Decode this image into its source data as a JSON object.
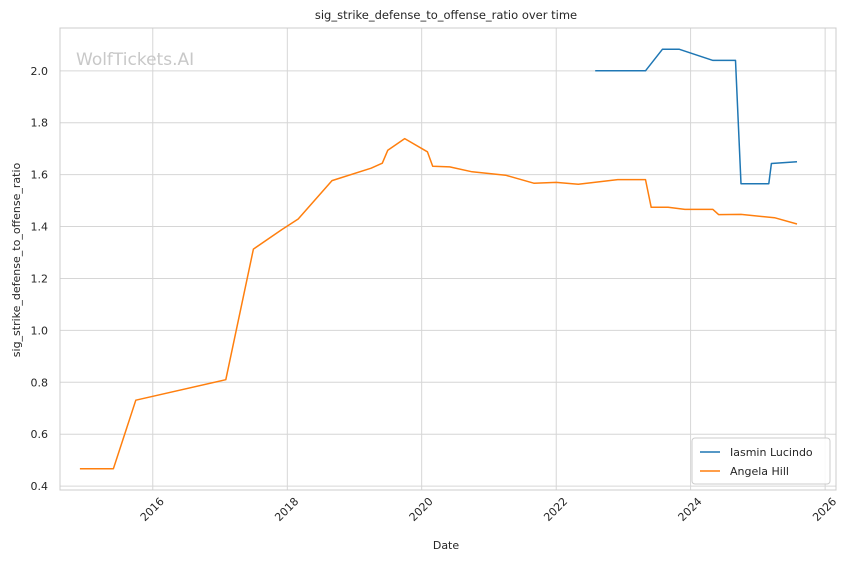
{
  "chart_data": {
    "type": "line",
    "title": "sig_strike_defense_to_offense_ratio over time",
    "xlabel": "Date",
    "ylabel": "sig_strike_defense_to_offense_ratio",
    "watermark": "WolfTickets.AI",
    "x_ticks": [
      "2016",
      "2018",
      "2020",
      "2022",
      "2024",
      "2026"
    ],
    "y_ticks": [
      "0.4",
      "0.6",
      "0.8",
      "1.0",
      "1.2",
      "1.4",
      "1.6",
      "1.8",
      "2.0"
    ],
    "xlim": [
      "2014-08-15",
      "2026-03-01"
    ],
    "ylim": [
      0.385,
      2.165
    ],
    "grid": true,
    "legend_position": "lower-right",
    "series": [
      {
        "name": "Iasmin Lucindo",
        "color": "#1f77b4",
        "points": [
          [
            "2022-08-01",
            2.0
          ],
          [
            "2023-05-01",
            2.0
          ],
          [
            "2023-08-01",
            2.083
          ],
          [
            "2023-11-01",
            2.083
          ],
          [
            "2024-05-01",
            2.04
          ],
          [
            "2024-09-01",
            2.04
          ],
          [
            "2024-10-01",
            1.565
          ],
          [
            "2025-03-01",
            1.565
          ],
          [
            "2025-03-15",
            1.643
          ],
          [
            "2025-08-01",
            1.65
          ]
        ]
      },
      {
        "name": "Angela Hill",
        "color": "#ff7f0e",
        "points": [
          [
            "2014-12-01",
            0.467
          ],
          [
            "2015-06-01",
            0.467
          ],
          [
            "2015-10-01",
            0.731
          ],
          [
            "2017-02-01",
            0.81
          ],
          [
            "2017-07-01",
            1.313
          ],
          [
            "2017-12-01",
            1.388
          ],
          [
            "2018-03-01",
            1.429
          ],
          [
            "2018-09-01",
            1.577
          ],
          [
            "2019-04-01",
            1.625
          ],
          [
            "2019-06-01",
            1.644
          ],
          [
            "2019-07-01",
            1.694
          ],
          [
            "2019-10-01",
            1.739
          ],
          [
            "2020-02-01",
            1.688
          ],
          [
            "2020-03-01",
            1.632
          ],
          [
            "2020-06-01",
            1.63
          ],
          [
            "2020-10-01",
            1.611
          ],
          [
            "2021-04-01",
            1.598
          ],
          [
            "2021-09-01",
            1.567
          ],
          [
            "2022-01-01",
            1.57
          ],
          [
            "2022-05-01",
            1.563
          ],
          [
            "2022-12-01",
            1.581
          ],
          [
            "2023-05-01",
            1.581
          ],
          [
            "2023-06-01",
            1.474
          ],
          [
            "2023-09-01",
            1.474
          ],
          [
            "2023-12-01",
            1.466
          ],
          [
            "2024-05-01",
            1.466
          ],
          [
            "2024-06-01",
            1.446
          ],
          [
            "2024-10-01",
            1.447
          ],
          [
            "2025-04-01",
            1.434
          ],
          [
            "2025-08-01",
            1.41
          ]
        ]
      }
    ]
  }
}
